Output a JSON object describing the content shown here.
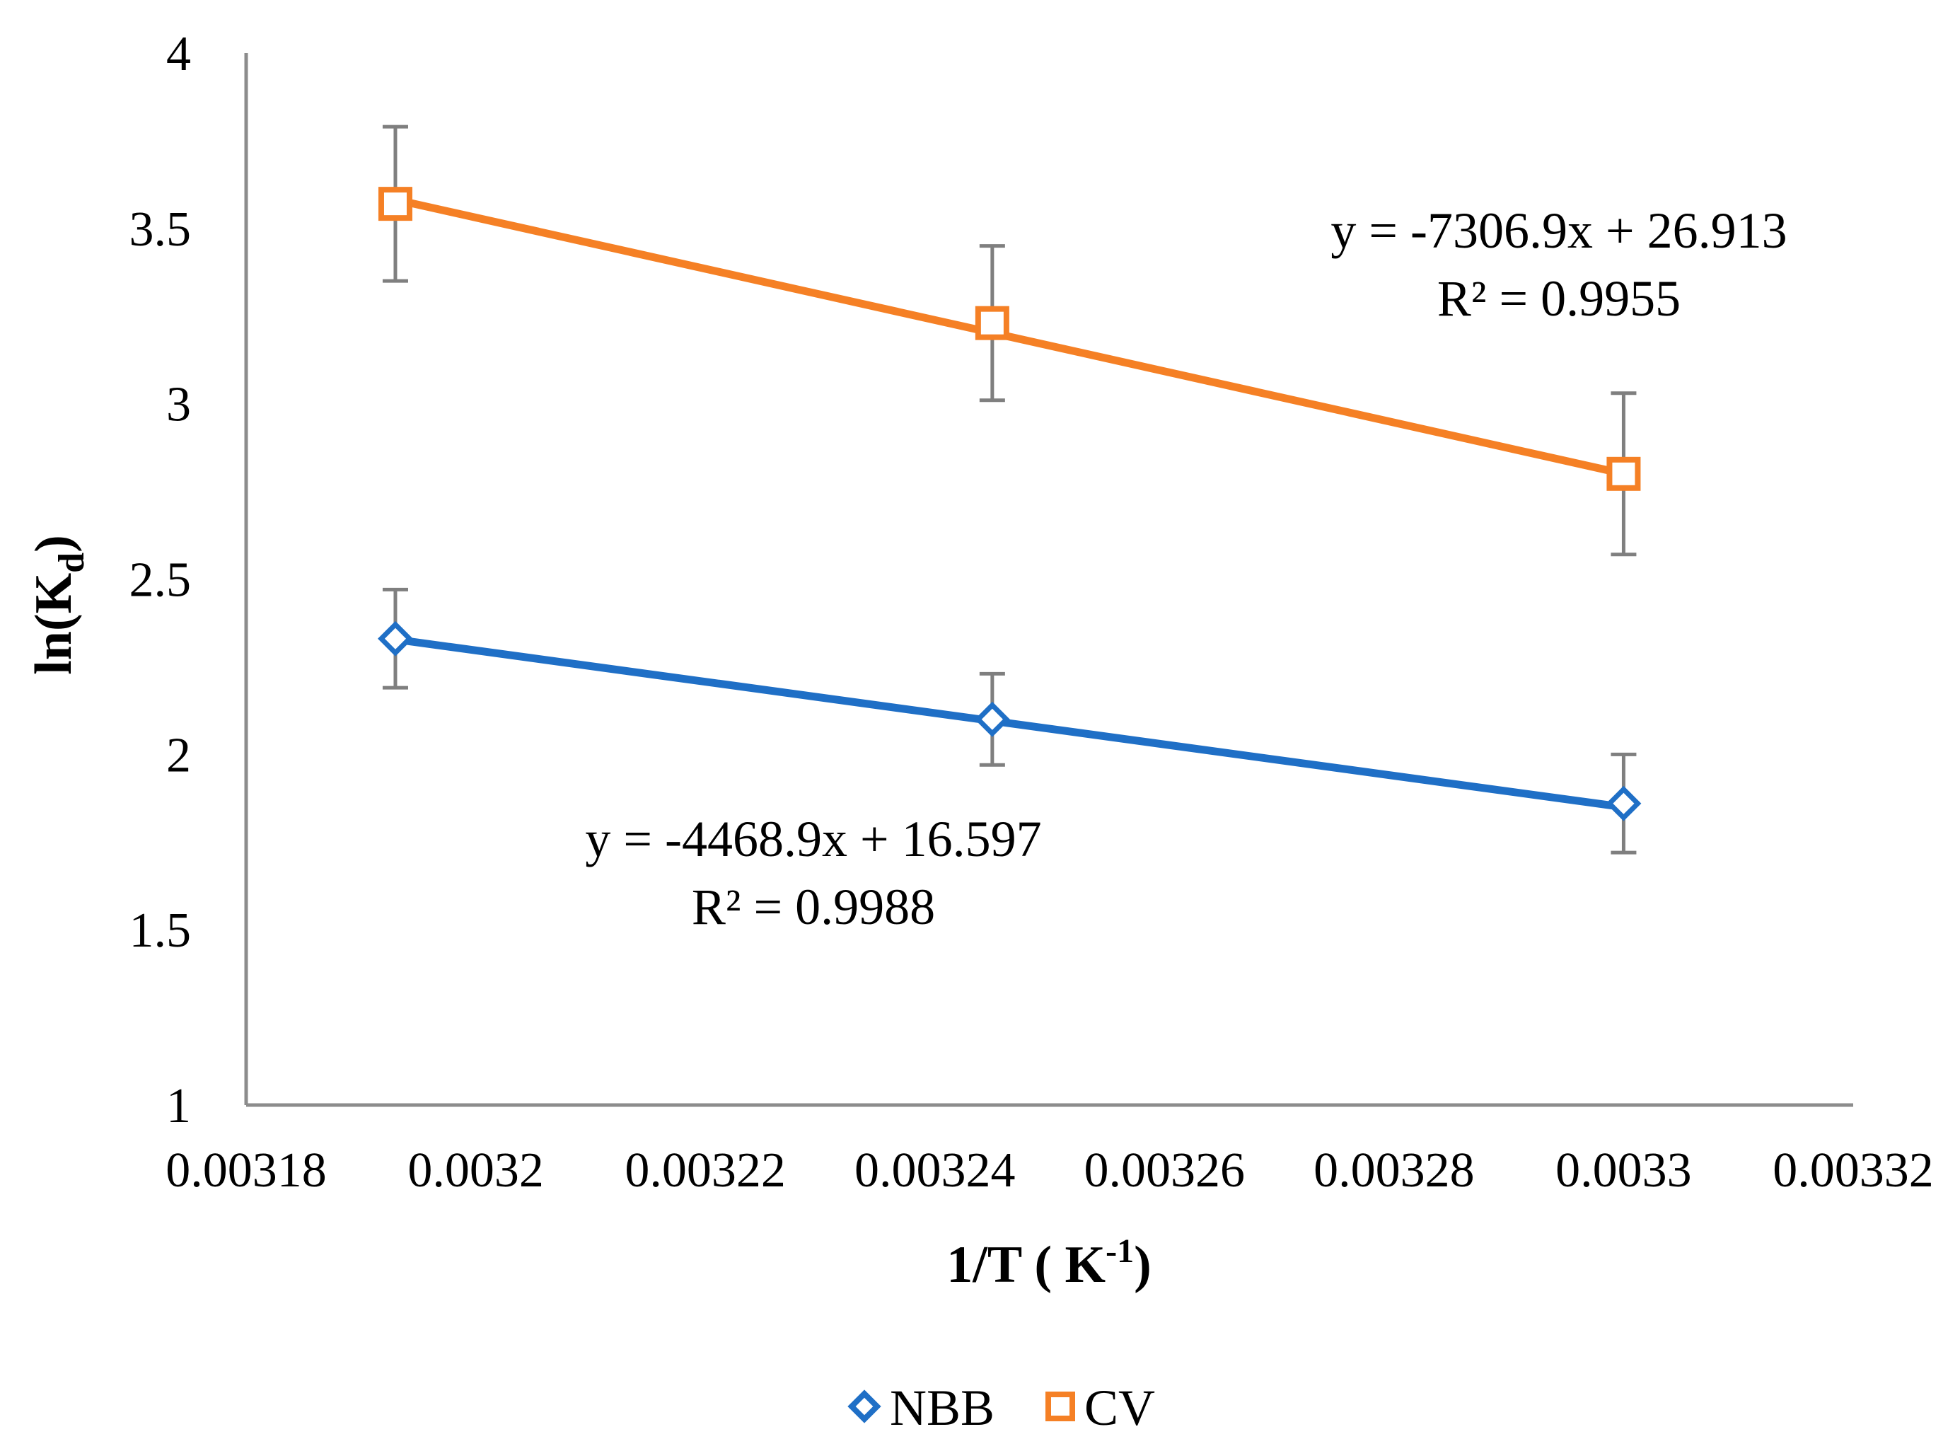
{
  "chart_data": {
    "type": "scatter",
    "title": "",
    "xlabel": {
      "main": "1/T ( K",
      "sup": "-1",
      "close": ")"
    },
    "ylabel": {
      "main": "ln(K",
      "sub": "d",
      "close": ")"
    },
    "xlim": [
      0.00318,
      0.00332
    ],
    "ylim": [
      1,
      4
    ],
    "x_ticks": [
      0.00318,
      0.0032,
      0.00322,
      0.00324,
      0.00326,
      0.00328,
      0.0033,
      0.00332
    ],
    "x_tick_labels": [
      "0.00318",
      "0.0032",
      "0.00322",
      "0.00324",
      "0.00326",
      "0.00328",
      "0.0033",
      "0.00332"
    ],
    "y_ticks": [
      1,
      1.5,
      2,
      2.5,
      3,
      3.5,
      4
    ],
    "y_tick_labels": [
      "1",
      "1.5",
      "2",
      "2.5",
      "3",
      "3.5",
      "4"
    ],
    "grid": false,
    "legend_position": "bottom",
    "series": [
      {
        "name": "NBB",
        "marker": "diamond",
        "color": "#1f6fc6",
        "x": [
          0.003193,
          0.003245,
          0.0033
        ],
        "y": [
          2.33,
          2.1,
          1.86
        ],
        "error": [
          0.14,
          0.13,
          0.14
        ],
        "trendline": {
          "slope": -4468.9,
          "intercept": 16.597,
          "equation": "y = -4468.9x + 16.597",
          "r2": "R² = 0.9988"
        }
      },
      {
        "name": "CV",
        "marker": "square",
        "color": "#f58025",
        "x": [
          0.003193,
          0.003245,
          0.0033
        ],
        "y": [
          3.57,
          3.23,
          2.8
        ],
        "error": [
          0.22,
          0.22,
          0.23
        ],
        "trendline": {
          "slope": -7306.9,
          "intercept": 26.913,
          "equation": "y = -7306.9x + 26.913",
          "r2": "R² = 0.9955"
        }
      }
    ]
  },
  "colors": {
    "axis": "#8c8c8c",
    "error_bar": "#7f7f7f"
  }
}
